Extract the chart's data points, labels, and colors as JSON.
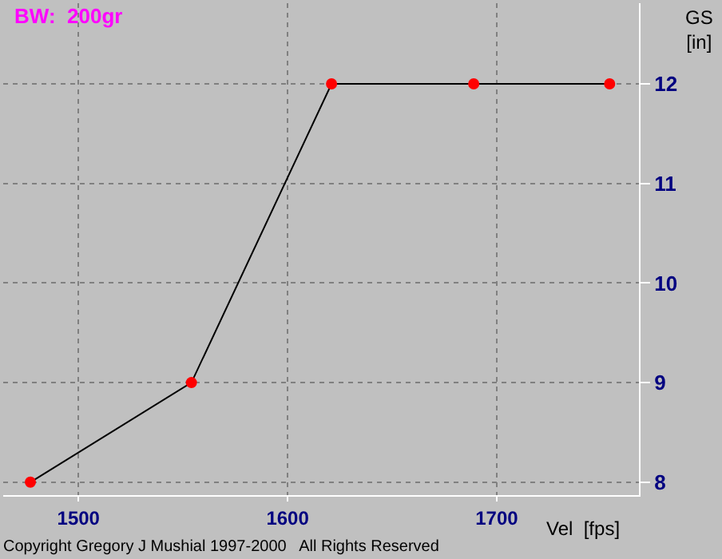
{
  "chart_data": {
    "type": "line",
    "title": "BW:  200gr",
    "xlabel": "Vel  [fps]",
    "ylabel": "GS\n[in]",
    "x": [
      1477,
      1554,
      1621,
      1689,
      1754
    ],
    "series": [
      {
        "color": "#000000",
        "colors": [
          "#ff0000",
          "#ff0000",
          "#ff0000",
          "#ff0000",
          "#ff0000"
        ],
        "values": [
          8,
          9,
          12,
          12,
          12
        ]
      }
    ],
    "xlim": [
      1464,
      1768
    ],
    "xticks": [
      1500,
      1600,
      1700
    ],
    "ylim": [
      7.87,
      12.81
    ],
    "yticks": [
      8,
      9,
      10,
      11,
      12
    ],
    "grid": true,
    "marker": "circle",
    "line_style": "solid",
    "annotations": [
      "Copyright Gregory J Mushial 1997-2000   All Rights Reserved"
    ]
  }
}
